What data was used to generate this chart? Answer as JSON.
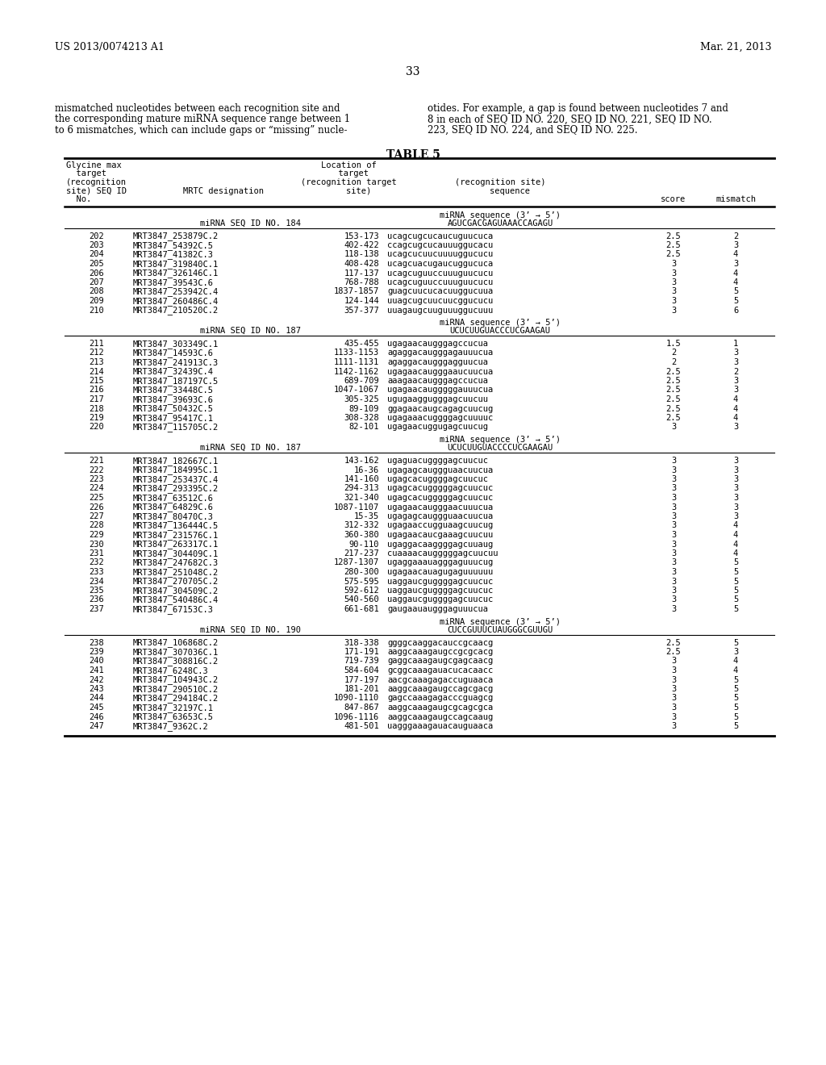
{
  "page_header_left": "US 2013/0074213 A1",
  "page_header_right": "Mar. 21, 2013",
  "page_number": "33",
  "left_para": [
    "mismatched nucleotides between each recognition site and",
    "the corresponding mature miRNA sequence range between 1",
    "to 6 mismatches, which can include gaps or “missing” nucle-"
  ],
  "right_para": [
    "otides. For example, a gap is found between nucleotides 7 and",
    "8 in each of SEQ ID NO. 220, SEQ ID NO. 221, SEQ ID NO.",
    "223, SEQ ID NO. 224, and SEQ ID NO. 225."
  ],
  "table_title": "TABLE 5",
  "sections": [
    {
      "mirna_label": "miRNA SEQ ID NO. 184",
      "mirna_seq_label": "miRNA sequence (3’ → 5’)",
      "mirna_seq": "AGUCGACGAGUAAACCAGAGU",
      "rows": [
        [
          "202",
          "MRT3847_253879C.2",
          "153-173",
          "ucagcugcucaucuguucuca",
          "2.5",
          "2"
        ],
        [
          "203",
          "MRT3847_54392C.5",
          "402-422",
          "ccagcugcucauuuggucacu",
          "2.5",
          "3"
        ],
        [
          "204",
          "MRT3847_41382C.3",
          "118-138",
          "ucagcucuucuuuuggucucu",
          "2.5",
          "4"
        ],
        [
          "205",
          "MRT3847_319840C.1",
          "408-428",
          "ucagcuacugaucuggucuca",
          "3",
          "3"
        ],
        [
          "206",
          "MRT3847_326146C.1",
          "117-137",
          "ucagcuguuccuuuguucucu",
          "3",
          "4"
        ],
        [
          "207",
          "MRT3847_39543C.6",
          "768-788",
          "ucagcuguuccuuuguucucu",
          "3",
          "4"
        ],
        [
          "208",
          "MRT3847_253942C.4",
          "1837-1857",
          "guagcuucucacuuggucuua",
          "3",
          "5"
        ],
        [
          "209",
          "MRT3847_260486C.4",
          "124-144",
          "uuagcugcuucuucggucucu",
          "3",
          "5"
        ],
        [
          "210",
          "MRT3847_210520C.2",
          "357-377",
          "uuagaugcuuguuuggucuuu",
          "3",
          "6"
        ]
      ]
    },
    {
      "mirna_label": "miRNA SEQ ID NO. 187",
      "mirna_seq_label": "miRNA sequence (3’ → 5’)",
      "mirna_seq": "UCUCUUGUACCCUCGAAGAU",
      "rows": [
        [
          "211",
          "MRT3847_303349C.1",
          "435-455",
          "ugagaacaugggagccucua",
          "1.5",
          "1"
        ],
        [
          "212",
          "MRT3847_14593C.6",
          "1133-1153",
          "agaggacaugggagauuucua",
          "2",
          "3"
        ],
        [
          "213",
          "MRT3847_241913C.3",
          "1111-1131",
          "agaggacaugggagguucua",
          "2",
          "3"
        ],
        [
          "214",
          "MRT3847_32439C.4",
          "1142-1162",
          "ugagaacaugggaaucuucua",
          "2.5",
          "2"
        ],
        [
          "215",
          "MRT3847_187197C.5",
          "689-709",
          "aaagaacaugggagccucua",
          "2.5",
          "3"
        ],
        [
          "216",
          "MRT3847_33448C.5",
          "1047-1067",
          "ugagaacaugggggauuucua",
          "2.5",
          "3"
        ],
        [
          "217",
          "MRT3847_39693C.6",
          "305-325",
          "ugugaaggugggagcuucuu",
          "2.5",
          "4"
        ],
        [
          "218",
          "MRT3847_50432C.5",
          "89-109",
          "ggagaacaugcagagcuucug",
          "2.5",
          "4"
        ],
        [
          "219",
          "MRT3847_95417C.1",
          "308-328",
          "ugagaaacuggggagcuuuuc",
          "2.5",
          "4"
        ],
        [
          "220",
          "MRT3847_115705C.2",
          "82-101",
          "ugagaacuggugagcuucug",
          "3",
          "3"
        ]
      ]
    },
    {
      "mirna_label": "miRNA SEQ ID NO. 187",
      "mirna_seq_label": "miRNA sequence (3’ → 5’)",
      "mirna_seq": "UCUCUUGUACCCCUCGAAGAU",
      "rows": [
        [
          "221",
          "MRT3847_182667C.1",
          "143-162",
          "ugaguacuggggagcuucuc",
          "3",
          "3"
        ],
        [
          "222",
          "MRT3847_184995C.1",
          "16-36",
          "ugagagcauggguaacuucua",
          "3",
          "3"
        ],
        [
          "223",
          "MRT3847_253437C.4",
          "141-160",
          "ugagcacuggggagcuucuc",
          "3",
          "3"
        ],
        [
          "224",
          "MRT3847_293395C.2",
          "294-313",
          "ugagcacugggggagcuucuc",
          "3",
          "3"
        ],
        [
          "225",
          "MRT3847_63512C.6",
          "321-340",
          "ugagcacugggggagcuucuc",
          "3",
          "3"
        ],
        [
          "226",
          "MRT3847_64829C.6",
          "1087-1107",
          "ugagaacaugggaacuuucua",
          "3",
          "3"
        ],
        [
          "227",
          "MRT3847_80470C.3",
          "15-35",
          "ugagagcauggguaacuucua",
          "3",
          "3"
        ],
        [
          "228",
          "MRT3847_136444C.5",
          "312-332",
          "ugagaaccugguaagcuucug",
          "3",
          "4"
        ],
        [
          "229",
          "MRT3847_231576C.1",
          "360-380",
          "ugagaacaucgaaagcuucuu",
          "3",
          "4"
        ],
        [
          "230",
          "MRT3847_263317C.1",
          "90-110",
          "ugaggacaaggggagcuuaug",
          "3",
          "4"
        ],
        [
          "231",
          "MRT3847_304409C.1",
          "217-237",
          "cuaaaacaugggggagcuucuu",
          "3",
          "4"
        ],
        [
          "232",
          "MRT3847_247682C.3",
          "1287-1307",
          "ugaggaaauagggaguuucug",
          "3",
          "5"
        ],
        [
          "233",
          "MRT3847_251048C.2",
          "280-300",
          "ugagaacauagugaguuuuuu",
          "3",
          "5"
        ],
        [
          "234",
          "MRT3847_270705C.2",
          "575-595",
          "uaggaucguggggagcuucuc",
          "3",
          "5"
        ],
        [
          "235",
          "MRT3847_304509C.2",
          "592-612",
          "uaggaucguggggagcuucuc",
          "3",
          "5"
        ],
        [
          "236",
          "MRT3847_540486C.4",
          "540-560",
          "uaggaucguggggagcuucuc",
          "3",
          "5"
        ],
        [
          "237",
          "MRT3847_67153C.3",
          "661-681",
          "gaugaauaugggaguuucua",
          "3",
          "5"
        ]
      ]
    },
    {
      "mirna_label": "miRNA SEQ ID NO. 190",
      "mirna_seq_label": "miRNA sequence (3’ → 5’)",
      "mirna_seq": "CUCCGUUUCUAUGGGCGUUGU",
      "rows": [
        [
          "238",
          "MRT3847_106868C.2",
          "318-338",
          "ggggcaaggacauccgcaacg",
          "2.5",
          "5"
        ],
        [
          "239",
          "MRT3847_307036C.1",
          "171-191",
          "aaggcaaagaugccgcgcacg",
          "2.5",
          "3"
        ],
        [
          "240",
          "MRT3847_308816C.2",
          "719-739",
          "gaggcaaagaugcgagcaacg",
          "3",
          "4"
        ],
        [
          "241",
          "MRT3847_6248C.3",
          "584-604",
          "gcggcaaagauacucacaacc",
          "3",
          "4"
        ],
        [
          "242",
          "MRT3847_104943C.2",
          "177-197",
          "aacgcaaagagaccuguaaca",
          "3",
          "5"
        ],
        [
          "243",
          "MRT3847_290510C.2",
          "181-201",
          "aaggcaaagaugccagcgacg",
          "3",
          "5"
        ],
        [
          "244",
          "MRT3847_294184C.2",
          "1090-1110",
          "gagccaaagagacccguagcg",
          "3",
          "5"
        ],
        [
          "245",
          "MRT3847_32197C.1",
          "847-867",
          "aaggcaaagaugcgcagcgca",
          "3",
          "5"
        ],
        [
          "246",
          "MRT3847_63653C.5",
          "1096-1116",
          "aaggcaaagaugccagcaaug",
          "3",
          "5"
        ],
        [
          "247",
          "MRT3847_9362C.2",
          "481-501",
          "uagggaaagauacauguaaca",
          "3",
          "5"
        ]
      ]
    }
  ]
}
